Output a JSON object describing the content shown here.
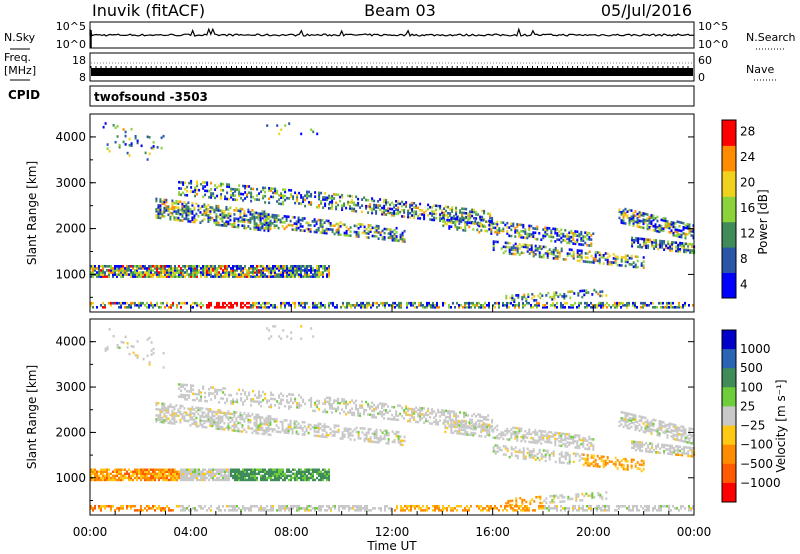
{
  "header": {
    "station": "Inuvik (fitACF)",
    "beam": "Beam 03",
    "date": "05/Jul/2016"
  },
  "strip_panels": {
    "nsky_label": "N.Sky",
    "nsky_ticks": [
      "10^5",
      "10^0"
    ],
    "nsearch_label": "N.Search",
    "nsearch_ticks": [
      "10^5",
      "10^0"
    ],
    "freq_label_1": "Freq.",
    "freq_label_2": "[MHz]",
    "freq_ticks": [
      "18",
      "8"
    ],
    "nave_label": "Nave",
    "nave_ticks": [
      "60",
      "0"
    ],
    "cpid_label": "CPID",
    "cpid_value": "twofsound -3503"
  },
  "chart_data": [
    {
      "type": "heatmap",
      "panel": "power",
      "ylabel": "Slant Range [km]",
      "yticks": [
        "1000",
        "2000",
        "3000",
        "4000"
      ],
      "ylim": [
        180,
        4500
      ],
      "xlim": [
        0,
        24
      ],
      "colorbar_label": "Power [dB]",
      "colorbar_ticks": [
        "4",
        "8",
        "12",
        "16",
        "20",
        "24",
        "28"
      ],
      "colorbar_colors": [
        "#0000ff",
        "#2a56a8",
        "#3f8c5a",
        "#8cd23a",
        "#f0d21e",
        "#ff8c00",
        "#ff0000"
      ]
    },
    {
      "type": "heatmap",
      "panel": "velocity",
      "ylabel": "Slant Range [km]",
      "yticks": [
        "1000",
        "2000",
        "3000",
        "4000"
      ],
      "ylim": [
        180,
        4500
      ],
      "xlim": [
        0,
        24
      ],
      "xticks": [
        "00:00",
        "04:00",
        "08:00",
        "12:00",
        "16:00",
        "20:00",
        "00:00"
      ],
      "xlabel": "Time UT",
      "colorbar_label": "Velocity [m s⁻¹]",
      "colorbar_ticks": [
        "1000",
        "500",
        "100",
        "25",
        "−25",
        "−100",
        "−500",
        "−1000"
      ],
      "colorbar_colors": [
        "#0000c8",
        "#2a64b4",
        "#3f8c5a",
        "#6ecd3a",
        "#c8c8c8",
        "#ffc814",
        "#ff8c00",
        "#ff5a00",
        "#ff0000"
      ]
    }
  ]
}
